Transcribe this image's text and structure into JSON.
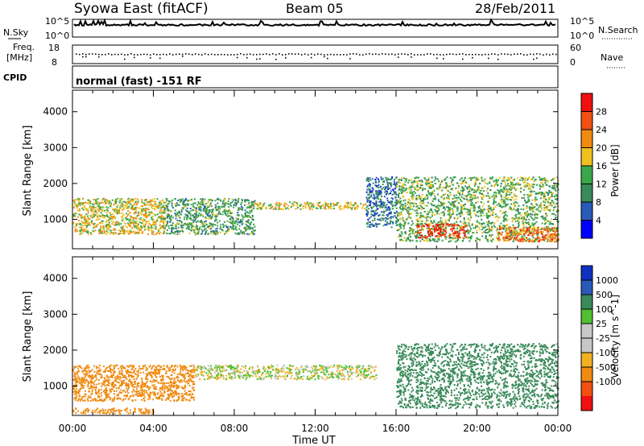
{
  "header": {
    "site": "Syowa East (fitACF)",
    "beam": "Beam 05",
    "date": "28/Feb/2011"
  },
  "panels": {
    "nsky": {
      "left_label": "N.Sky",
      "right_label": "N.Search",
      "left_top": "10^5",
      "left_bottom": "10^0",
      "right_top": "10^5",
      "right_bottom": "10^0"
    },
    "freq": {
      "left_label_1": "Freq.",
      "left_label_2": "[MHz]",
      "left_top": "18",
      "left_bottom": "8",
      "right_label": "Nave",
      "right_top": "60",
      "right_bottom": "0"
    },
    "cpid": {
      "label": "CPID",
      "text": "normal (fast) -151 RF"
    }
  },
  "colors": {
    "power": [
      "#0000ff",
      "#2a5ab8",
      "#3a8a5a",
      "#3aa84a",
      "#f0c020",
      "#f08a10",
      "#f05010",
      "#f01010"
    ],
    "velocity": [
      "#f01010",
      "#f05010",
      "#f08a10",
      "#f0b020",
      "#c8c8c8",
      "#c8c8c8",
      "#50c030",
      "#3a8a5a",
      "#2a5ab8",
      "#1030c0"
    ],
    "ground_scatter": "#c8c8c8"
  },
  "chart_data": [
    {
      "type": "heatmap",
      "quantity": "Power",
      "xlabel": "Time UT",
      "ylabel": "Slant Range [km]",
      "xlim": [
        0,
        24
      ],
      "ylim": [
        180,
        4600
      ],
      "x_ticks": [
        "00:00",
        "04:00",
        "08:00",
        "12:00",
        "16:00",
        "20:00",
        "00:00"
      ],
      "y_ticks": [
        1000,
        2000,
        3000,
        4000
      ],
      "colorbar": {
        "label": "Power [dB]",
        "range": [
          0,
          32
        ],
        "ticks": [
          "4",
          "8",
          "12",
          "16",
          "20",
          "24",
          "28"
        ]
      },
      "features": [
        {
          "t": [
            0.0,
            4.5
          ],
          "range": [
            600,
            1600
          ],
          "level_db": 18
        },
        {
          "t": [
            4.5,
            9.0
          ],
          "range": [
            600,
            1600
          ],
          "level_db": 12
        },
        {
          "t": [
            9.0,
            14.5
          ],
          "range": [
            1300,
            1500
          ],
          "level_db": 18
        },
        {
          "t": [
            14.5,
            16.0
          ],
          "range": [
            800,
            2200
          ],
          "level_db": 8
        },
        {
          "t": [
            16.0,
            24.0
          ],
          "range": [
            400,
            2200
          ],
          "level_db": 14
        },
        {
          "t": [
            17.0,
            19.5
          ],
          "range": [
            500,
            900
          ],
          "level_db": 28
        },
        {
          "t": [
            21.0,
            24.0
          ],
          "range": [
            400,
            800
          ],
          "level_db": 24
        }
      ]
    },
    {
      "type": "heatmap",
      "quantity": "Velocity",
      "xlabel": "Time UT",
      "ylabel": "Slant Range [km]",
      "xlim": [
        0,
        24
      ],
      "ylim": [
        180,
        4600
      ],
      "x_ticks": [
        "00:00",
        "04:00",
        "08:00",
        "12:00",
        "16:00",
        "20:00",
        "00:00"
      ],
      "y_ticks": [
        1000,
        2000,
        3000,
        4000
      ],
      "colorbar": {
        "label": "Velocity [m s^-1]",
        "ticks": [
          "1000",
          "500",
          "100",
          "25",
          "-25",
          "-100",
          "-500",
          "-1000"
        ]
      },
      "features": [
        {
          "t": [
            0.0,
            6.0
          ],
          "range": [
            600,
            1600
          ],
          "velocity": -300
        },
        {
          "t": [
            6.0,
            15.0
          ],
          "range": [
            1200,
            1600
          ],
          "velocity": 0
        },
        {
          "t": [
            0.0,
            4.0
          ],
          "range": [
            250,
            400
          ],
          "velocity": -200
        },
        {
          "t": [
            16.0,
            24.0
          ],
          "range": [
            400,
            2200
          ],
          "velocity": 300
        }
      ]
    }
  ]
}
